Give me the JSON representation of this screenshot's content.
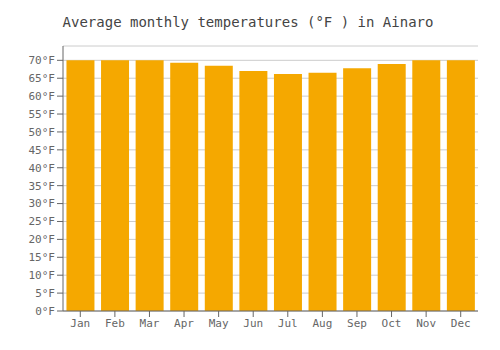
{
  "chart_data": {
    "type": "bar",
    "title": "Average monthly temperatures (°F ) in Ainaro",
    "categories": [
      "Jan",
      "Feb",
      "Mar",
      "Apr",
      "May",
      "Jun",
      "Jul",
      "Aug",
      "Sep",
      "Oct",
      "Nov",
      "Dec"
    ],
    "values": [
      70.0,
      70.0,
      70.0,
      69.3,
      68.5,
      67.0,
      66.2,
      66.5,
      67.8,
      69.0,
      70.0,
      70.0
    ],
    "color": "#F5A800",
    "ylim": [
      0,
      74
    ],
    "yticks": [
      {
        "value": 0,
        "label": "0°F"
      },
      {
        "value": 5,
        "label": "5°F"
      },
      {
        "value": 10,
        "label": "10°F"
      },
      {
        "value": 15,
        "label": "15°F"
      },
      {
        "value": 20,
        "label": "20°F"
      },
      {
        "value": 25,
        "label": "25°F"
      },
      {
        "value": 30,
        "label": "30°F"
      },
      {
        "value": 35,
        "label": "35°F"
      },
      {
        "value": 40,
        "label": "40°F"
      },
      {
        "value": 45,
        "label": "45°F"
      },
      {
        "value": 50,
        "label": "50°F"
      },
      {
        "value": 55,
        "label": "55°F"
      },
      {
        "value": 60,
        "label": "60°F"
      },
      {
        "value": 65,
        "label": "65°F"
      },
      {
        "value": 70,
        "label": "70°F"
      }
    ],
    "grid": true
  }
}
